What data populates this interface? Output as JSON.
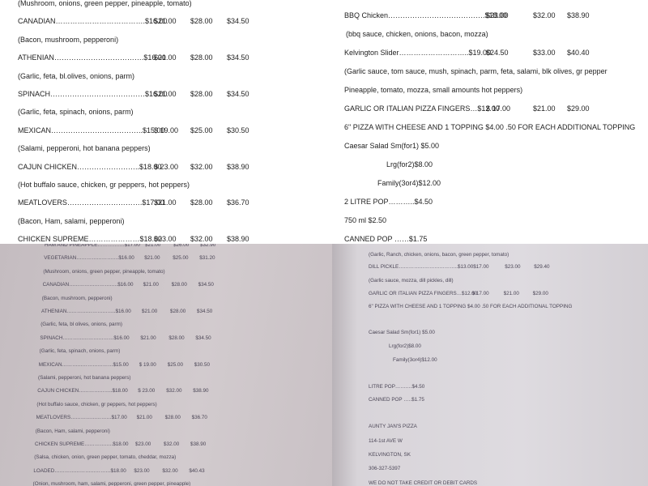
{
  "top_left": {
    "rows": [
      [
        "(Mushroom, onions, green pepper, pineapple, tomato)"
      ],
      [
        "CANADIAN……………………………….$16.00",
        "$21.00",
        "$28.00",
        "$34.50"
      ],
      [
        "(Bacon, mushroom, pepperoni)"
      ],
      [
        "ATHENIAN……………………………….$16.00",
        "$21.00",
        "$28.00",
        "$34.50"
      ],
      [
        "(Garlic, feta, bl.olives, onions, parm)"
      ],
      [
        "SPINACH…………………………………$16.00",
        "$21.00",
        "$28.00",
        "$34.50"
      ],
      [
        "(Garlic, feta, spinach, onions, parm)"
      ],
      [
        "MEXICAN………………………………..$15.00",
        "$ 19.00",
        "$25.00",
        "$30.50"
      ],
      [
        "(Salami, pepperoni, hot banana peppers)"
      ],
      [
        "CAJUN CHICKEN……………………..$18.00",
        "$ 23.00",
        "$32.00",
        "$38.90"
      ],
      [
        "(Hot buffalo sauce, chicken, gr peppers, hot peppers)"
      ],
      [
        "MEATLOVERS………………………….$17.00",
        "$21.00",
        "$28.00",
        "$36.70"
      ],
      [
        "(Bacon, Ham, salami, pepperoni)"
      ],
      [
        "CHICKEN SUPREME…………………$18.00",
        "$23.00",
        "$32.00",
        "$38.90"
      ]
    ]
  },
  "top_right": {
    "rows": [
      [
        "BBQ Chicken………………………………….$18.00",
        "$23.00",
        "$32.00",
        "$38.90"
      ],
      [
        "(bbq sauce, chicken, onions, bacon, mozza)"
      ],
      [
        "Kelvington Slider………………………..$19.00",
        "$24.50",
        "$33.00",
        "$40.40"
      ],
      [
        "(Garlic sauce, tom sauce, mush, spinach, parm, feta, salami, blk olives, gr pepper"
      ],
      [
        "Pineapple, tomato,  mozza, small amounts hot peppers)"
      ],
      [
        "GARLIC OR ITALIAN PIZZA FINGERS…$12.00",
        "$ 17.00",
        "$21.00",
        "$29.00"
      ],
      [
        "6\" PIZZA WITH CHEESE AND 1 TOPPING $4.00     .50 FOR EACH ADDITIONAL TOPPING"
      ],
      [
        "Caesar Salad Sm(for1) $5.00"
      ],
      [
        "Lrg(for2)$8.00"
      ],
      [
        "Family(3or4)$12.00"
      ],
      [
        "2 LITRE POP………..$4.50"
      ],
      [
        "750 ml $2.50"
      ],
      [
        "CANNED POP ……$1.75"
      ]
    ]
  },
  "bottom_left": {
    "rows": [
      [
        "HAM AND PINEAPPLE…………….$17.00",
        "$21.00",
        "$26.00",
        "$32.90"
      ],
      [
        "VEGETARIAN…………………….$16.00",
        "$21.00",
        "$25.00",
        "$31.20"
      ],
      [
        "(Mushroom, onions, green pepper, pineapple, tomato)"
      ],
      [
        "CANADIAN………………………..$16.00",
        "$21.00",
        "$28.00",
        "$34.50"
      ],
      [
        "(Bacon, mushroom, pepperoni)"
      ],
      [
        "ATHENIAN………………………..$16.00",
        "$21.00",
        "$28.00",
        "$34.50"
      ],
      [
        "(Garlic, feta, bl olives, onions, parm)"
      ],
      [
        "SPINACH…………………………$16.00",
        "$21.00",
        "$28.00",
        "$34.50"
      ],
      [
        "(Garlic, feta, spinach, onions, parm)"
      ],
      [
        "MEXICAN…………………………$15.00",
        "$ 19.00",
        "$25.00",
        "$30.50"
      ],
      [
        "(Salami, pepperoni, hot banana peppers)"
      ],
      [
        "CAJUN CHICKEN………………..$18.00",
        "$ 23.00",
        "$32.00",
        "$38.90"
      ],
      [
        "(Hot buffalo sauce, chicken, gr peppers, hot peppers)"
      ],
      [
        "MEATLOVERS……………………$17.00",
        "$21.00",
        "$28.00",
        "$36.70"
      ],
      [
        "(Bacon, Ham, salami, pepperoni)"
      ],
      [
        "CHICKEN SUPREME……………..$18.00",
        "$23.00",
        "$32.00",
        "$38.90"
      ],
      [
        "(Salsa, chicken, onion, green pepper, tomato, cheddar, mozza)"
      ],
      [
        "LOADED……………………………$18.00",
        "$23.00",
        "$32.00",
        "$40.43"
      ],
      [
        "(Onion, mushroom, ham, salami, pepperoni, green pepper, pineapple)"
      ]
    ]
  },
  "bottom_right": {
    "rows": [
      [
        "(Garlic, Ranch, chicken, onions, bacon, green pepper, tomato)"
      ],
      [
        "DILL PICKLE……………………………..$13.00",
        "$17.00",
        "$23.00",
        "$29.40"
      ],
      [
        "(Garlic sauce, mozza, dill pickles, dill)"
      ],
      [
        "GARLIC OR ITALIAN PIZZA FINGERS…$12.00",
        "$ 17.00",
        "$21.00",
        "$29.00"
      ],
      [
        "6\" PIZZA WITH CHEESE AND 1 TOPPING $4.00    .50 FOR EACH ADDITIONAL TOPPING"
      ],
      [
        "Caesar Salad Sm(for1) $5.00"
      ],
      [
        "Lrg(for2)$8.00"
      ],
      [
        "Family(3or4)$12.00"
      ],
      [
        "LITRE POP……….$4.50"
      ],
      [
        "CANNED POP …..$1.75"
      ],
      [
        "AUNTY JAN'S PIZZA"
      ],
      [
        "114-1st AVE W"
      ],
      [
        "KELVINGTON, SK"
      ],
      [
        "306-327-5397"
      ],
      [
        "WE DO NOT TAKE CREDIT OR DEBIT CARDS"
      ]
    ]
  }
}
